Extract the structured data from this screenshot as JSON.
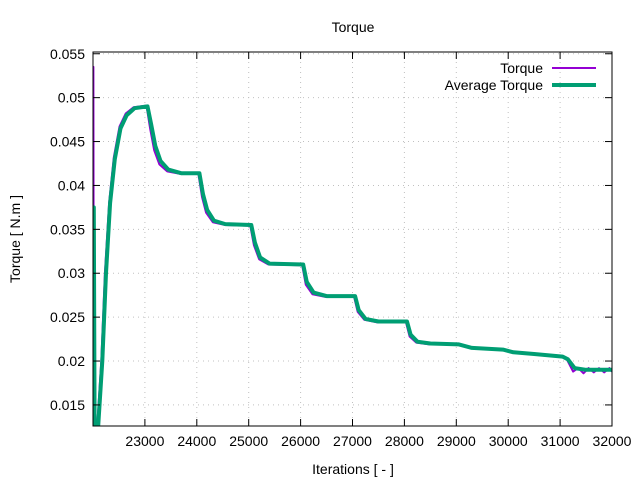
{
  "chart_data": {
    "type": "line",
    "title": "Torque",
    "xlabel": "Iterations [ - ]",
    "ylabel": "Torque [ N.m ]",
    "xlim": [
      22000,
      32000
    ],
    "ylim": [
      0.0126,
      0.0552
    ],
    "grid": true,
    "legend_position": "top-right",
    "xticks": [
      23000,
      24000,
      25000,
      26000,
      27000,
      28000,
      29000,
      30000,
      31000,
      32000
    ],
    "yticks": [
      0.015,
      0.02,
      0.025,
      0.03,
      0.035,
      0.04,
      0.045,
      0.05,
      0.055
    ],
    "xtick_labels": [
      "23000",
      "24000",
      "25000",
      "26000",
      "27000",
      "28000",
      "29000",
      "30000",
      "31000",
      "32000"
    ],
    "ytick_labels": [
      "0.015",
      "0.02",
      "0.025",
      "0.03",
      "0.035",
      "0.04",
      "0.045",
      "0.05",
      "0.055"
    ],
    "series": [
      {
        "name": "Torque",
        "color": "#9400d3",
        "points": [
          [
            22000,
            0.0126
          ],
          [
            22008,
            0.0535
          ],
          [
            22016,
            0.0126
          ],
          [
            22080,
            0.0126
          ],
          [
            22160,
            0.02
          ],
          [
            22230,
            0.03
          ],
          [
            22310,
            0.038
          ],
          [
            22400,
            0.0432
          ],
          [
            22510,
            0.0467
          ],
          [
            22630,
            0.0482
          ],
          [
            22780,
            0.0489
          ],
          [
            23030,
            0.0491
          ],
          [
            23100,
            0.0465
          ],
          [
            23180,
            0.044
          ],
          [
            23280,
            0.0424
          ],
          [
            23430,
            0.0416
          ],
          [
            23700,
            0.0413
          ],
          [
            24030,
            0.0413
          ],
          [
            24100,
            0.0387
          ],
          [
            24180,
            0.0369
          ],
          [
            24310,
            0.0358
          ],
          [
            24550,
            0.0355
          ],
          [
            25030,
            0.0354
          ],
          [
            25100,
            0.0332
          ],
          [
            25200,
            0.0316
          ],
          [
            25380,
            0.031
          ],
          [
            26030,
            0.0309
          ],
          [
            26100,
            0.0287
          ],
          [
            26230,
            0.0276
          ],
          [
            26480,
            0.0273
          ],
          [
            27030,
            0.0273
          ],
          [
            27100,
            0.0256
          ],
          [
            27230,
            0.0247
          ],
          [
            27480,
            0.0244
          ],
          [
            28030,
            0.0244
          ],
          [
            28100,
            0.0228
          ],
          [
            28230,
            0.0221
          ],
          [
            28480,
            0.0219
          ],
          [
            29030,
            0.0219
          ],
          [
            29280,
            0.0215
          ],
          [
            29880,
            0.0213
          ],
          [
            30080,
            0.021
          ],
          [
            30480,
            0.0208
          ],
          [
            31030,
            0.0205
          ],
          [
            31130,
            0.0202
          ],
          [
            31250,
            0.0188
          ],
          [
            31350,
            0.0192
          ],
          [
            31450,
            0.0186
          ],
          [
            31550,
            0.0192
          ],
          [
            31650,
            0.0187
          ],
          [
            31750,
            0.0192
          ],
          [
            31850,
            0.0187
          ],
          [
            31950,
            0.0192
          ],
          [
            32000,
            0.0188
          ]
        ]
      },
      {
        "name": "Average Torque",
        "color": "#009e73",
        "points": [
          [
            22000,
            0.0126
          ],
          [
            22015,
            0.0375
          ],
          [
            22030,
            0.0126
          ],
          [
            22100,
            0.0126
          ],
          [
            22180,
            0.02
          ],
          [
            22250,
            0.03
          ],
          [
            22330,
            0.038
          ],
          [
            22420,
            0.043
          ],
          [
            22530,
            0.0465
          ],
          [
            22650,
            0.048
          ],
          [
            22800,
            0.0488
          ],
          [
            23050,
            0.049
          ],
          [
            23120,
            0.047
          ],
          [
            23200,
            0.0445
          ],
          [
            23300,
            0.0428
          ],
          [
            23450,
            0.0418
          ],
          [
            23700,
            0.0414
          ],
          [
            24050,
            0.0414
          ],
          [
            24120,
            0.039
          ],
          [
            24200,
            0.0372
          ],
          [
            24330,
            0.036
          ],
          [
            24550,
            0.0356
          ],
          [
            25050,
            0.0355
          ],
          [
            25120,
            0.0335
          ],
          [
            25220,
            0.0318
          ],
          [
            25400,
            0.0311
          ],
          [
            26050,
            0.031
          ],
          [
            26120,
            0.029
          ],
          [
            26250,
            0.0278
          ],
          [
            26500,
            0.0274
          ],
          [
            27050,
            0.0274
          ],
          [
            27120,
            0.0258
          ],
          [
            27250,
            0.0248
          ],
          [
            27500,
            0.0245
          ],
          [
            28050,
            0.0245
          ],
          [
            28120,
            0.023
          ],
          [
            28250,
            0.0222
          ],
          [
            28500,
            0.022
          ],
          [
            29050,
            0.0219
          ],
          [
            29300,
            0.0215
          ],
          [
            29900,
            0.0213
          ],
          [
            30100,
            0.021
          ],
          [
            30500,
            0.0208
          ],
          [
            31050,
            0.0205
          ],
          [
            31150,
            0.0202
          ],
          [
            31280,
            0.0192
          ],
          [
            31500,
            0.019
          ],
          [
            32000,
            0.019
          ]
        ]
      }
    ]
  }
}
